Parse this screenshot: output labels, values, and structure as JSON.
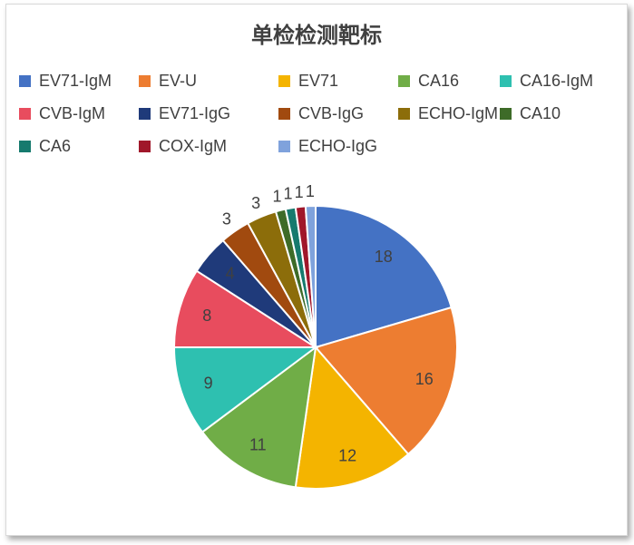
{
  "chart_data": {
    "type": "pie",
    "title": "单检检测靶标",
    "legend_position": "top",
    "categories": [
      "EV71-IgM",
      "EV-U",
      "EV71",
      "CA16",
      "CA16-IgM",
      "CVB-IgM",
      "EV71-IgG",
      "CVB-IgG",
      "ECHO-IgM",
      "CA10",
      "CA6",
      "COX-IgM",
      "ECHO-IgG"
    ],
    "values": [
      18,
      16,
      12,
      11,
      9,
      8,
      4,
      3,
      3,
      1,
      1,
      1,
      1
    ],
    "colors": [
      "#4472C4",
      "#ED7D31",
      "#F4B400",
      "#70AD47",
      "#2EC0B0",
      "#E84C5E",
      "#1F3A7A",
      "#A14A0F",
      "#8C6D0A",
      "#3E6B28",
      "#167A6E",
      "#A0172A",
      "#7FA2DC"
    ]
  }
}
